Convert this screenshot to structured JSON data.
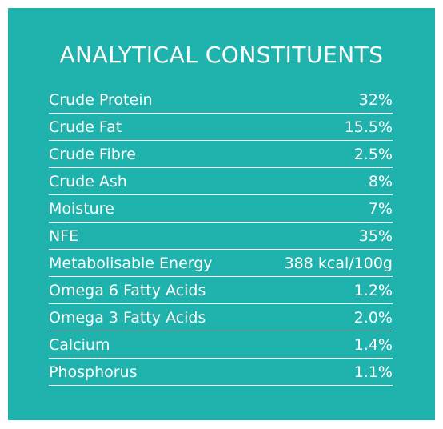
{
  "title": "ANALYTICAL CONSTITUENTS",
  "rows": [
    {
      "label": "Crude Protein",
      "value": "32%"
    },
    {
      "label": "Crude Fat",
      "value": "15.5%"
    },
    {
      "label": "Crude Fibre",
      "value": "2.5%"
    },
    {
      "label": "Crude Ash",
      "value": "8%"
    },
    {
      "label": "Moisture",
      "value": "7%"
    },
    {
      "label": "NFE",
      "value": "35%"
    },
    {
      "label": "Metabolisable Energy",
      "value": "388 kcal/100g"
    },
    {
      "label": "Omega 6 Fatty Acids",
      "value": "1.2%"
    },
    {
      "label": "Omega 3 Fatty Acids",
      "value": "2.0%"
    },
    {
      "label": "Calcium",
      "value": "1.4%"
    },
    {
      "label": "Phosphorus",
      "value": "1.1%"
    }
  ],
  "colors": {
    "panel": "#20b2ac",
    "text": "#ffffff"
  }
}
